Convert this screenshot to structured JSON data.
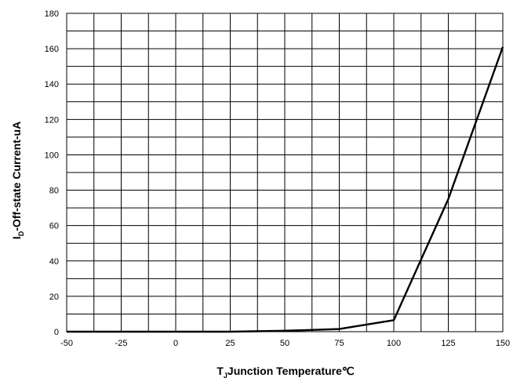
{
  "chart_data": {
    "type": "line",
    "x": [
      -50,
      -25,
      0,
      25,
      50,
      75,
      100,
      125,
      150
    ],
    "series": [
      {
        "values": [
          0,
          0,
          0,
          0,
          0.5,
          1.5,
          6.5,
          75,
          161
        ]
      }
    ],
    "xlim": [
      -50,
      150
    ],
    "ylim": [
      0,
      180
    ],
    "x_ticks": [
      "-50",
      "-25",
      "0",
      "25",
      "50",
      "75",
      "100",
      "125",
      "150"
    ],
    "y_ticks": [
      "0",
      "20",
      "40",
      "60",
      "80",
      "100",
      "120",
      "140",
      "160",
      "180"
    ],
    "x_minor_step": 12.5,
    "y_minor_step": 10,
    "grid": true,
    "legend": "none",
    "xlabel": {
      "main": "T",
      "sub": "J",
      "rest": "Junction Temperature℃"
    },
    "ylabel": {
      "main": "I",
      "sub": "D",
      "rest": "-Off-state Current-uA"
    },
    "colors": {
      "line": "#000000",
      "grid": "#000000",
      "background": "#ffffff"
    }
  }
}
